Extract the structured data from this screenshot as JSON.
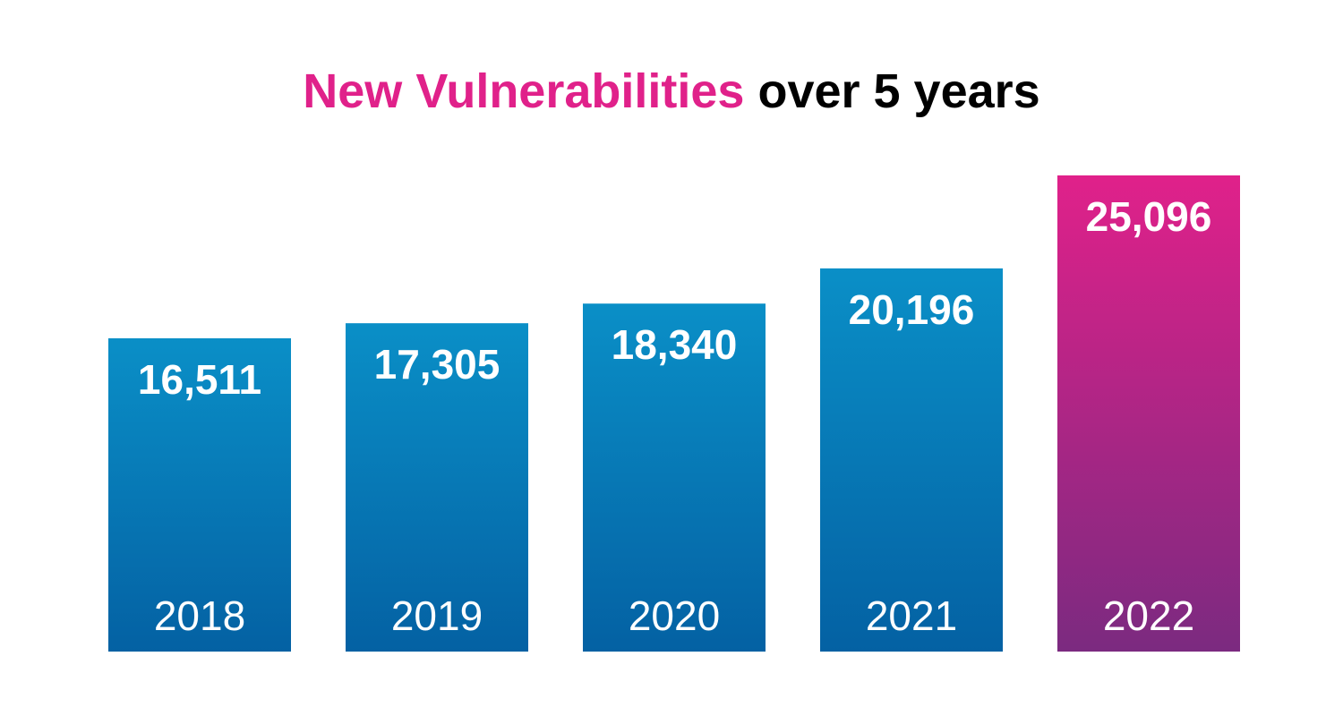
{
  "title": {
    "highlight": "New Vulnerabilities",
    "rest": "over 5 years",
    "highlight_color": "#e0218a",
    "rest_color": "#000000"
  },
  "colors": {
    "blue_top": "#0a8fc7",
    "blue_bottom": "#0461a3",
    "magenta_top": "#e0218a",
    "magenta_bottom": "#7b2a80",
    "label": "#ffffff"
  },
  "chart_data": {
    "type": "bar",
    "title": "New Vulnerabilities over 5 years",
    "xlabel": "",
    "ylabel": "",
    "categories": [
      "2018",
      "2019",
      "2020",
      "2021",
      "2022"
    ],
    "values": [
      16511,
      17305,
      18340,
      20196,
      25096
    ],
    "value_labels": [
      "16,511",
      "17,305",
      "18,340",
      "20,196",
      "25,096"
    ],
    "highlight_index": 4,
    "grid": false,
    "legend": "none",
    "axes_visible": false
  }
}
